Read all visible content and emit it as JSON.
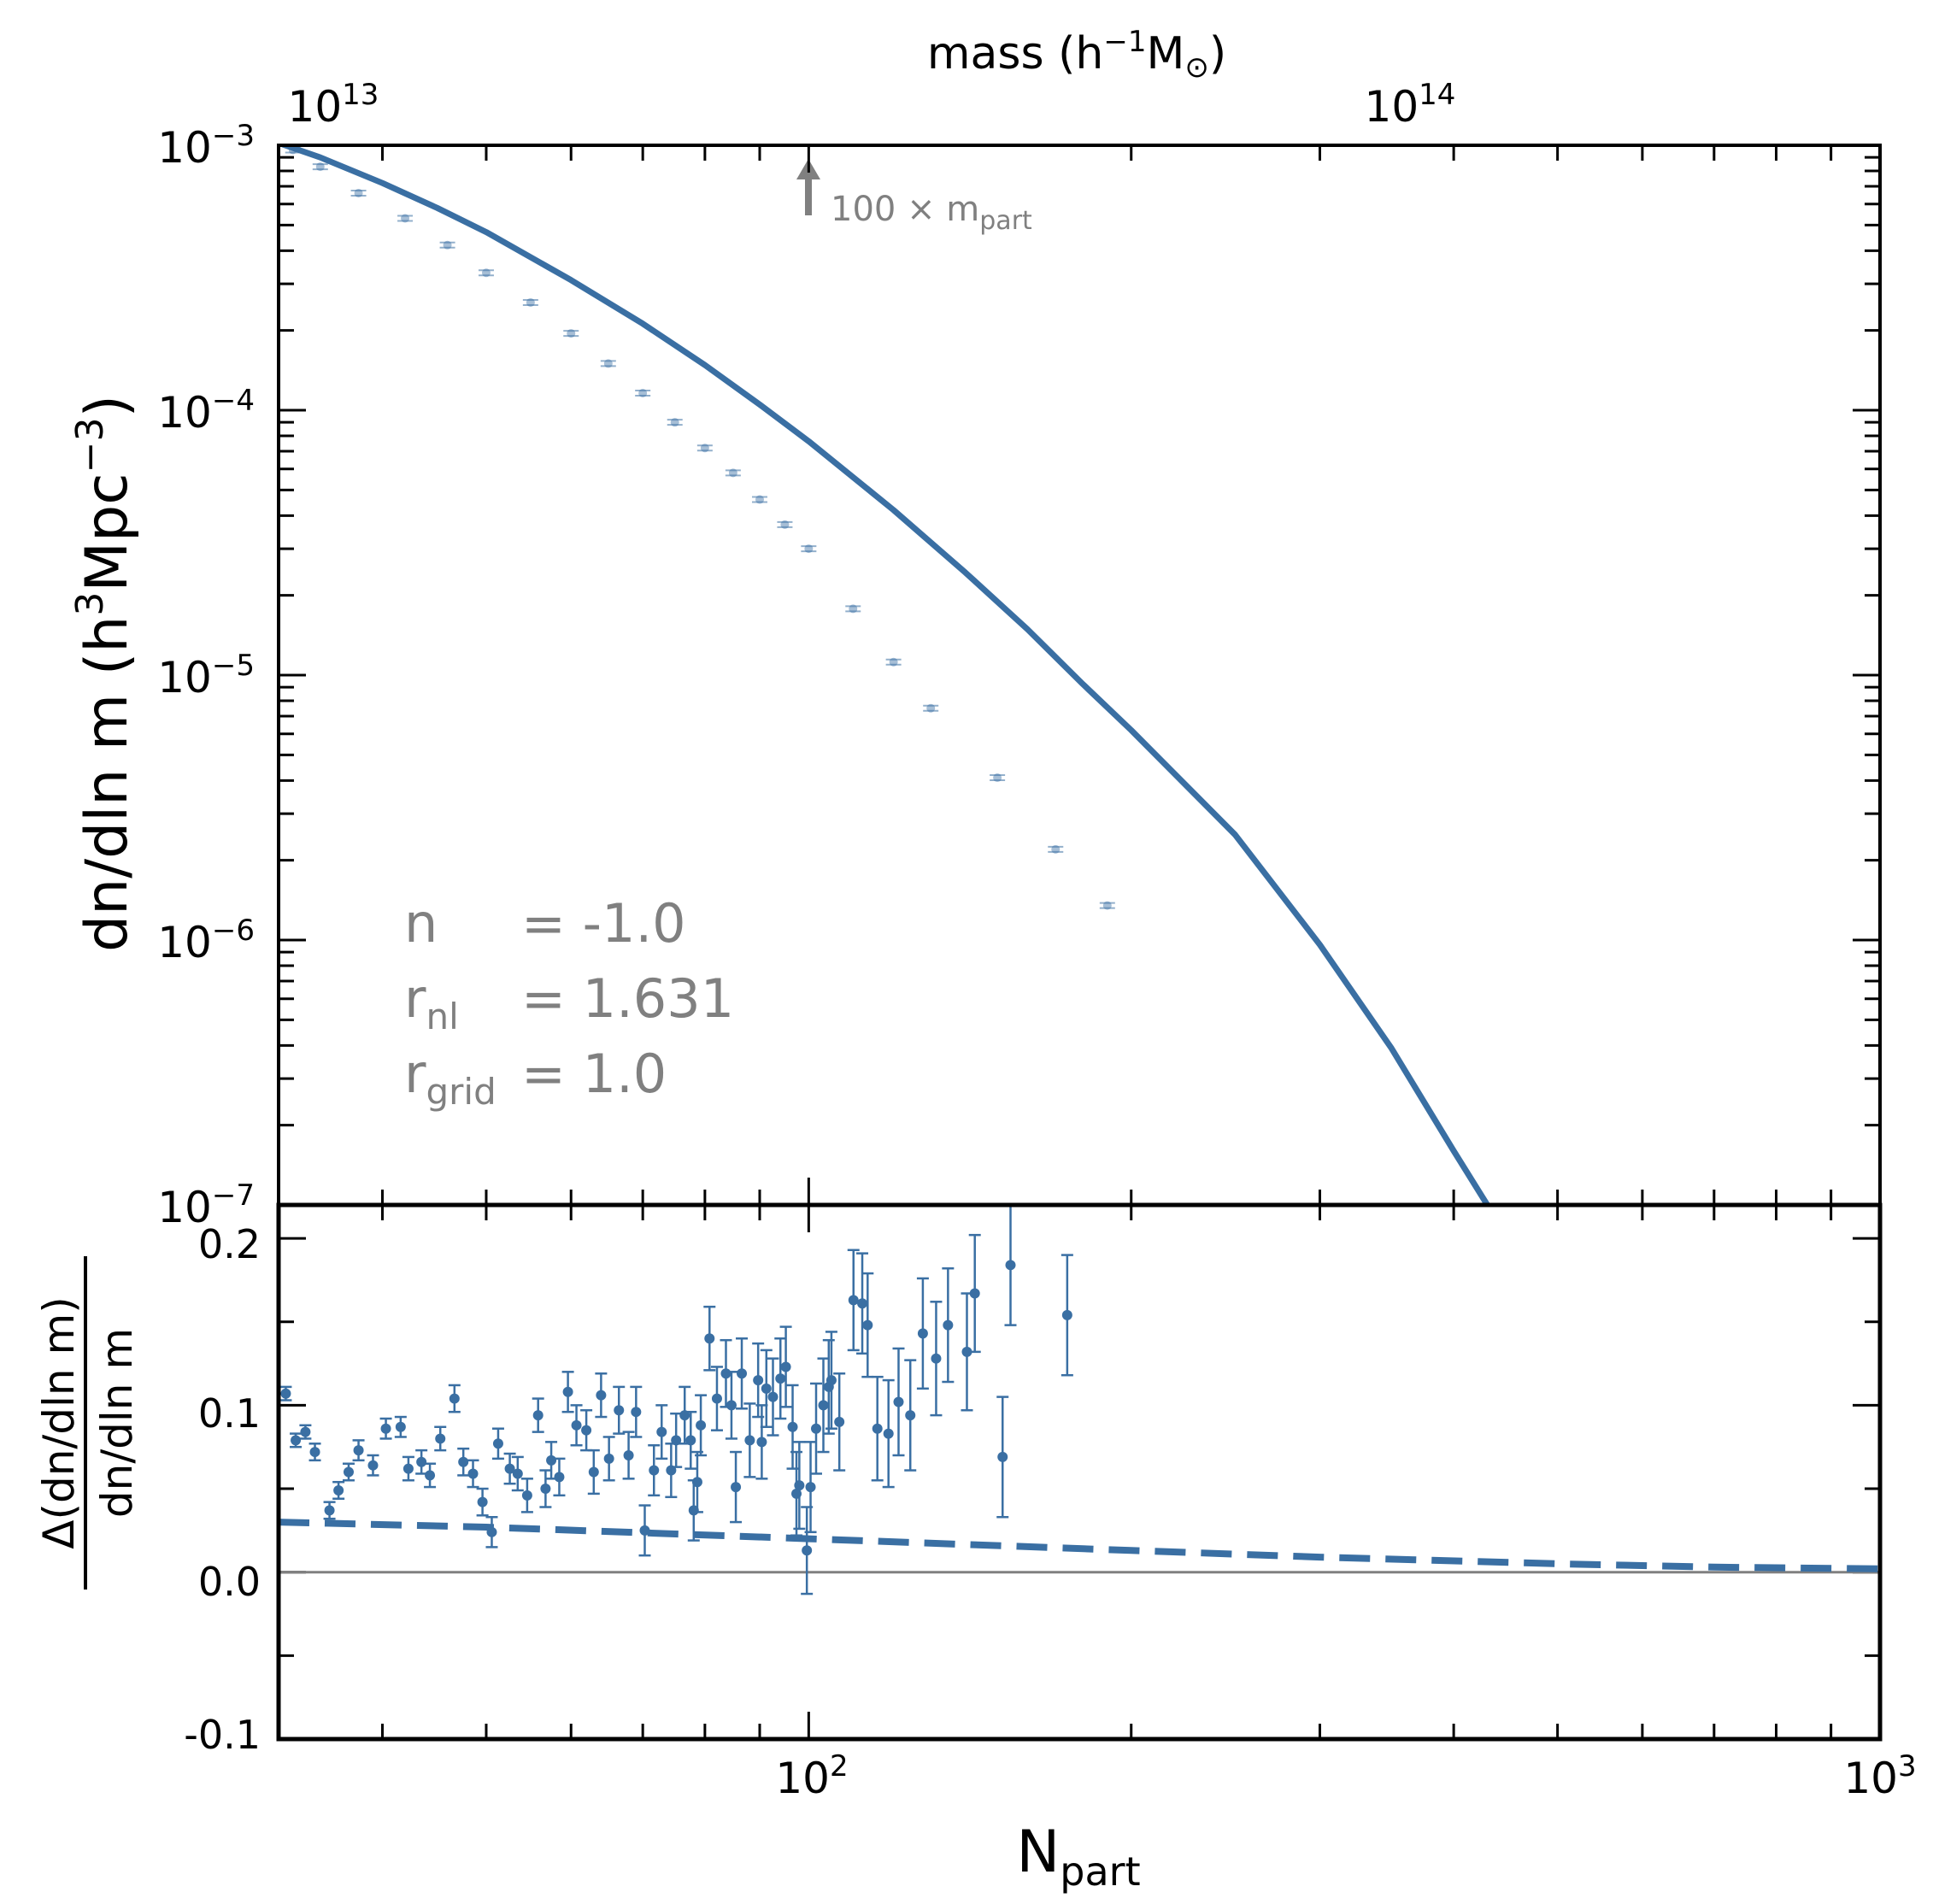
{
  "top_axis": {
    "label_main": "mass (h",
    "label_exp": "−1",
    "label_unit": "M",
    "label_sub": "⊙",
    "label_close": ")",
    "ticks": [
      {
        "base": "10",
        "exp": "13",
        "mass": 10000000000000.0
      },
      {
        "base": "10",
        "exp": "14",
        "mass": 100000000000000.0
      }
    ]
  },
  "bottom_axis": {
    "label_main": "N",
    "label_sub": "part",
    "ticks": [
      {
        "base": "10",
        "exp": "2",
        "value": 100
      },
      {
        "base": "10",
        "exp": "3",
        "value": 1000
      }
    ]
  },
  "main_y_axis": {
    "label_main": "dn/dln m (h",
    "label_exp1": "3",
    "label_mid": "Mpc",
    "label_exp2": "−3",
    "label_close": ")",
    "ticks": [
      {
        "base": "10",
        "exp": "−3",
        "value": 0.001
      },
      {
        "base": "10",
        "exp": "−4",
        "value": 0.0001
      },
      {
        "base": "10",
        "exp": "−5",
        "value": 1e-05
      },
      {
        "base": "10",
        "exp": "−6",
        "value": 1e-06
      },
      {
        "base": "10",
        "exp": "−7",
        "value": 1e-07
      }
    ]
  },
  "residual_y_axis": {
    "label_numerator": "Δ(dn/dln m)",
    "label_denominator": "dn/dln m",
    "ticks": [
      "0.2",
      "0.1",
      "0.0",
      "-0.1"
    ]
  },
  "annotation": {
    "arrow_text": "100 × m",
    "arrow_sub": "part",
    "params": [
      {
        "name": "n",
        "sub": "",
        "value": "= -1.0"
      },
      {
        "name": "r",
        "sub": "nl",
        "value": "= 1.631"
      },
      {
        "name": "r",
        "sub": "grid",
        "value": "= 1.0"
      }
    ]
  },
  "colors": {
    "series": "#3a6fa3",
    "annotation": "#808080",
    "zero_line": "#808080"
  },
  "chart_data": [
    {
      "type": "line",
      "panel": "mass function",
      "xscale": "log",
      "yscale": "log",
      "xlim": [
        32,
        1000
      ],
      "ylim": [
        1e-07,
        0.001
      ],
      "grid": false,
      "secondary_x_axis": {
        "label": "mass (h^-1 M_sun)",
        "mass_per_particle": 100000000000.0
      },
      "series": [
        {
          "kind": "model_line",
          "x": [
            32,
            35,
            40,
            45,
            50,
            60,
            70,
            80,
            90,
            100,
            120,
            140,
            160,
            180,
            200,
            250,
            300,
            350,
            400,
            430
          ],
          "y": [
            0.00102,
            0.0009,
            0.00072,
            0.00058,
            0.00047,
            0.00031,
            0.000212,
            0.000148,
            0.000105,
            7.63e-05,
            4.2e-05,
            2.44e-05,
            1.49e-05,
            9.3e-06,
            6.2e-06,
            2.5e-06,
            9.6e-07,
            3.9e-07,
            1.6e-07,
            1e-07
          ]
        },
        {
          "kind": "measured_points",
          "x": [
            33,
            35,
            38,
            42,
            46,
            50,
            55,
            60,
            65,
            70,
            75,
            80,
            85,
            90,
            95,
            100,
            110,
            120,
            130,
            150,
            170,
            190
          ],
          "y": [
            0.00096,
            0.00083,
            0.00066,
            0.00053,
            0.00042,
            0.00033,
            0.000255,
            0.000195,
            0.00015,
            0.000116,
            9e-05,
            7.2e-05,
            5.8e-05,
            4.6e-05,
            3.7e-05,
            3e-05,
            1.78e-05,
            1.12e-05,
            7.5e-06,
            4.1e-06,
            2.2e-06,
            1.35e-06
          ]
        }
      ]
    },
    {
      "type": "scatter",
      "panel": "fractional residual",
      "xscale": "log",
      "xlim": [
        32,
        1000
      ],
      "ylim": [
        -0.1,
        0.22
      ],
      "xlabel": "N_part",
      "ylabel": "Δ(dn/dln m) / dn/dln m",
      "reference_line": {
        "y": 0.0
      },
      "series": [
        {
          "kind": "residual_points",
          "x": [
            32.5,
            33.2,
            33.9,
            34.6,
            35.7,
            36.4,
            37.2,
            38.0,
            39.2,
            40.3,
            41.6,
            42.3,
            43.5,
            44.3,
            45.3,
            46.7,
            47.6,
            48.6,
            49.6,
            50.6,
            51.3,
            52.6,
            53.5,
            54.6,
            55.9,
            56.8,
            57.5,
            58.5,
            59.6,
            60.7,
            62.0,
            63.0,
            64.0,
            65.1,
            66.5,
            67.9,
            69.0,
            70.3,
            71.7,
            72.9,
            74.4,
            75.2,
            76.6,
            77.6,
            78.1,
            78.7,
            79.3,
            80.8,
            82.1,
            83.7,
            84.7,
            85.5,
            86.6,
            88.1,
            89.7,
            90.4,
            91.3,
            92.6,
            94.1,
            95.2,
            96.6,
            97.4,
            98.0,
            99.6,
            100.4,
            101.6,
            103.2,
            104.4,
            105.0,
            106.8,
            110.1,
            112.2,
            113.5,
            115.9,
            118.7,
            121.3,
            124.4,
            127.8,
            131.5,
            134.9,
            140.5,
            142.9,
            151.7,
            154.3,
            174.3
          ],
          "y": [
            0.107,
            0.079,
            0.084,
            0.072,
            0.037,
            0.049,
            0.06,
            0.073,
            0.064,
            0.086,
            0.087,
            0.062,
            0.066,
            0.058,
            0.08,
            0.104,
            0.066,
            0.059,
            0.042,
            0.024,
            0.077,
            0.062,
            0.059,
            0.046,
            0.094,
            0.05,
            0.067,
            0.057,
            0.108,
            0.088,
            0.085,
            0.06,
            0.106,
            0.068,
            0.097,
            0.07,
            0.096,
            0.025,
            0.061,
            0.084,
            0.061,
            0.079,
            0.094,
            0.079,
            0.037,
            0.054,
            0.088,
            0.14,
            0.104,
            0.119,
            0.1,
            0.051,
            0.119,
            0.079,
            0.115,
            0.078,
            0.11,
            0.105,
            0.116,
            0.123,
            0.087,
            0.047,
            0.052,
            0.013,
            0.051,
            0.086,
            0.1,
            0.111,
            0.115,
            0.09,
            0.163,
            0.161,
            0.148,
            0.086,
            0.083,
            0.102,
            0.094,
            0.143,
            0.128,
            0.148,
            0.132,
            0.167,
            0.069,
            0.184,
            0.154
          ],
          "yerr": [
            0.004,
            0.004,
            0.004,
            0.005,
            0.005,
            0.005,
            0.005,
            0.006,
            0.006,
            0.006,
            0.006,
            0.007,
            0.007,
            0.007,
            0.007,
            0.008,
            0.008,
            0.008,
            0.008,
            0.009,
            0.009,
            0.009,
            0.01,
            0.01,
            0.01,
            0.011,
            0.011,
            0.011,
            0.012,
            0.012,
            0.012,
            0.013,
            0.013,
            0.013,
            0.014,
            0.014,
            0.015,
            0.015,
            0.015,
            0.016,
            0.016,
            0.016,
            0.017,
            0.017,
            0.018,
            0.018,
            0.018,
            0.019,
            0.019,
            0.02,
            0.02,
            0.021,
            0.021,
            0.022,
            0.022,
            0.022,
            0.023,
            0.023,
            0.024,
            0.024,
            0.025,
            0.025,
            0.026,
            0.026,
            0.027,
            0.027,
            0.028,
            0.028,
            0.029,
            0.029,
            0.03,
            0.03,
            0.031,
            0.031,
            0.032,
            0.032,
            0.033,
            0.033,
            0.034,
            0.034,
            0.035,
            0.035,
            0.036,
            0.036,
            0.036
          ]
        },
        {
          "kind": "dashed_model",
          "x": [
            32,
            50,
            100,
            200,
            300,
            500,
            700,
            1000
          ],
          "y": [
            0.03,
            0.027,
            0.02,
            0.013,
            0.009,
            0.005,
            0.003,
            0.002
          ]
        }
      ]
    }
  ]
}
